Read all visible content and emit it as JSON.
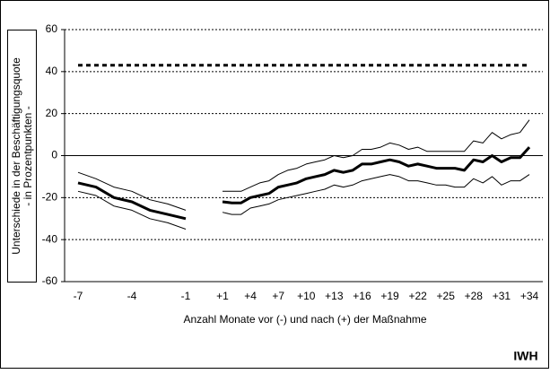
{
  "chart_data": {
    "type": "line",
    "y_label": [
      "Unterschiede in der Beschäftigungsquote",
      "- in Prozentpunkten -"
    ],
    "x_label": "Anzahl Monate vor (-) und nach (+) der Maßnahme",
    "source": "IWH",
    "categories": [
      "-7",
      null,
      null,
      "-4",
      null,
      null,
      "-1",
      null,
      "+1",
      null,
      null,
      "+4",
      null,
      null,
      "+7",
      null,
      null,
      "+10",
      null,
      null,
      "+13",
      null,
      null,
      "+16",
      null,
      null,
      "+19",
      null,
      null,
      "+22",
      null,
      null,
      "+25",
      null,
      null,
      "+28",
      null,
      null,
      "+31",
      null,
      null,
      "+34"
    ],
    "series": [
      {
        "color": "#000000",
        "style": "dashed",
        "width": 3,
        "values": [
          43,
          43,
          43,
          43,
          43,
          43,
          43,
          43,
          43,
          43,
          43,
          43,
          43,
          43,
          43,
          43,
          43,
          43,
          43,
          43,
          43,
          43,
          43,
          43,
          43,
          43,
          43,
          43,
          43,
          43,
          43,
          43,
          43,
          43,
          43,
          43,
          43,
          43,
          43,
          43,
          43,
          43
        ]
      },
      {
        "color": "#000000",
        "style": "solid",
        "width": 1,
        "values": [
          -8,
          -11,
          -15,
          -17,
          -21,
          -23,
          -26,
          null,
          -17,
          -17,
          -17,
          -15,
          -13,
          -12,
          -9,
          -7,
          -6,
          -4,
          -3,
          -2,
          0,
          -1,
          0,
          3,
          3,
          4,
          6,
          5,
          3,
          4,
          2,
          2,
          2,
          2,
          2,
          7,
          6,
          11,
          8,
          10,
          11,
          17
        ]
      },
      {
        "color": "#000000",
        "style": "solid",
        "width": 3,
        "values": [
          -13,
          -15,
          -20,
          -22,
          -26,
          -28,
          -30,
          null,
          -22,
          -22.5,
          -22.5,
          -20,
          -19,
          -18,
          -15,
          -14,
          -13,
          -11,
          -10,
          -9,
          -7,
          -8,
          -7,
          -4,
          -4,
          -3,
          -2,
          -3,
          -5,
          -4,
          -5,
          -6,
          -6,
          -6,
          -7,
          -2,
          -3,
          0,
          -3,
          -1,
          -1,
          4
        ]
      },
      {
        "color": "#000000",
        "style": "solid",
        "width": 1,
        "values": [
          -17,
          -19,
          -24,
          -26,
          -30,
          -32,
          -35,
          null,
          -27,
          -28,
          -28,
          -25,
          -24,
          -23,
          -21,
          -20,
          -19,
          -18,
          -17,
          -16,
          -14,
          -15,
          -14,
          -12,
          -11,
          -10,
          -9,
          -10,
          -12,
          -12,
          -13,
          -14,
          -14,
          -15,
          -15,
          -11,
          -13,
          -10,
          -14,
          -12,
          -12,
          -9
        ]
      }
    ],
    "ylim": [
      -60,
      60
    ],
    "yticks": [
      -60,
      -40,
      -20,
      0,
      20,
      40,
      60
    ],
    "grid": true
  }
}
